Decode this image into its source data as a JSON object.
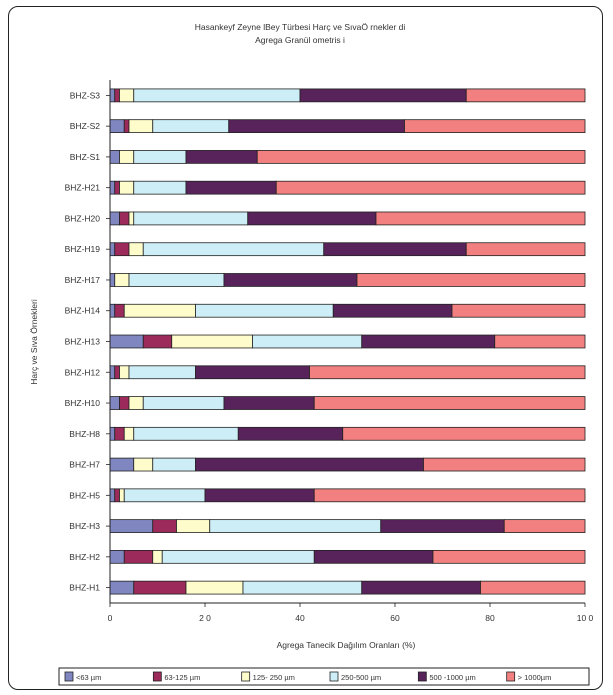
{
  "chart_data": {
    "type": "bar",
    "orientation": "horizontal",
    "stacked": true,
    "title": [
      "Hasankeyf Zeyne lBey Türbesi Harç ve SıvaÖ rnekler di",
      "Agrega Granül ometris i"
    ],
    "xlabel": "Agrega Tanecik Dağılım Oranları (%)",
    "ylabel": "Harç ve Sıva Örnekleri",
    "xlim": [
      0,
      100
    ],
    "xticks": [
      "0",
      "2 0",
      "40",
      "60",
      "80",
      "10 0"
    ],
    "grid": false,
    "legend_position": "bottom",
    "categories": [
      "BHZ-H1",
      "BHZ-H2",
      "BHZ-H3",
      "BHZ-H5",
      "BHZ-H7",
      "BHZ-H8",
      "BHZ-H10",
      "BHZ-H12",
      "BHZ-H13",
      "BHZ-H14",
      "BHZ-H17",
      "BHZ-H19",
      "BHZ-H20",
      "BHZ-H21",
      "BHZ-S1",
      "BHZ-S2",
      "BHZ-S3"
    ],
    "category_labels": [
      "BHZ-H1",
      "BHZ-H2",
      "BHZ-H3",
      "BHZ-H5",
      "BHZ-H7",
      "BHZ-H8",
      "BHZ-H10",
      "BHZ-H12",
      "BHZ-H13",
      "BHZ-H14",
      "BHZ-H17",
      "BHZ-H19",
      "BHZ-H20",
      "BHZ-H21",
      "BHZ-S1",
      "BHZ-S2",
      "BHZ-S3"
    ],
    "series": [
      {
        "name": "<63 µm",
        "color": "#7f86c0",
        "values": [
          5,
          3,
          9,
          1,
          5,
          1,
          2,
          1,
          7,
          1,
          1,
          1,
          2,
          1,
          2,
          3,
          1
        ]
      },
      {
        "name": "63-125 µm",
        "color": "#9c2a5a",
        "values": [
          11,
          6,
          5,
          1,
          0,
          2,
          2,
          1,
          6,
          2,
          0,
          3,
          2,
          1,
          0,
          1,
          1
        ]
      },
      {
        "name": "125- 250 µm",
        "color": "#fffccc",
        "values": [
          12,
          2,
          7,
          1,
          4,
          2,
          3,
          2,
          17,
          15,
          3,
          3,
          1,
          3,
          3,
          5,
          3
        ]
      },
      {
        "name": "250-500 µm",
        "color": "#cdeef6",
        "values": [
          25,
          32,
          36,
          17,
          9,
          22,
          17,
          14,
          23,
          29,
          20,
          38,
          24,
          11,
          11,
          16,
          35
        ]
      },
      {
        "name": "500 -1000 µm",
        "color": "#57235a",
        "values": [
          25,
          25,
          26,
          23,
          48,
          22,
          19,
          24,
          28,
          25,
          28,
          30,
          27,
          19,
          15,
          37,
          35
        ]
      },
      {
        "name": "> 1000µm",
        "color": "#f28080",
        "values": [
          22,
          32,
          17,
          57,
          34,
          51,
          57,
          58,
          19,
          28,
          48,
          25,
          44,
          65,
          69,
          38,
          25
        ]
      }
    ]
  }
}
